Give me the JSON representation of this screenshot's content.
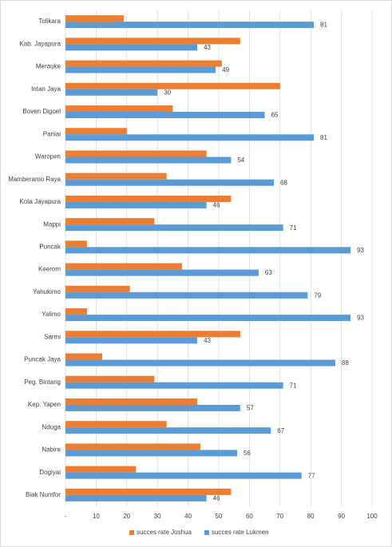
{
  "chart_data": {
    "type": "barh",
    "categories": [
      "Tolikara",
      "Kab. Jayapura",
      "Merauke",
      "Intan Jaya",
      "Boven Digoel",
      "Paniai",
      "Waropen",
      "Mamberamo Raya",
      "Kota Jayapura",
      "Mappi",
      "Puncak",
      "Keerom",
      "Yahukimo",
      "Yalimo",
      "Sarmi",
      "Puncak Jaya",
      "Peg. Bintang",
      "Kep. Yapen",
      "Nduga",
      "Nabire",
      "Dogiyai",
      "Biak Numfor"
    ],
    "series": [
      {
        "name": "succes rate Joshua",
        "color": "#ed7d31",
        "show_labels": false,
        "values": [
          19,
          57,
          51,
          70,
          35,
          20,
          46,
          33,
          54,
          29,
          7,
          38,
          21,
          7,
          57,
          12,
          29,
          43,
          33,
          44,
          23,
          54
        ]
      },
      {
        "name": "succes rate Lukmen",
        "color": "#5b9bd5",
        "show_labels": true,
        "values": [
          81,
          43,
          49,
          30,
          65,
          81,
          54,
          68,
          46,
          71,
          93,
          63,
          79,
          93,
          43,
          88,
          71,
          57,
          67,
          56,
          77,
          46
        ]
      }
    ],
    "xlim": [
      0,
      100
    ],
    "xticks": [
      {
        "value": 0,
        "label": "-"
      },
      10,
      20,
      30,
      40,
      50,
      60,
      70,
      80,
      90,
      100
    ],
    "grid": true,
    "legend": "bottom"
  }
}
